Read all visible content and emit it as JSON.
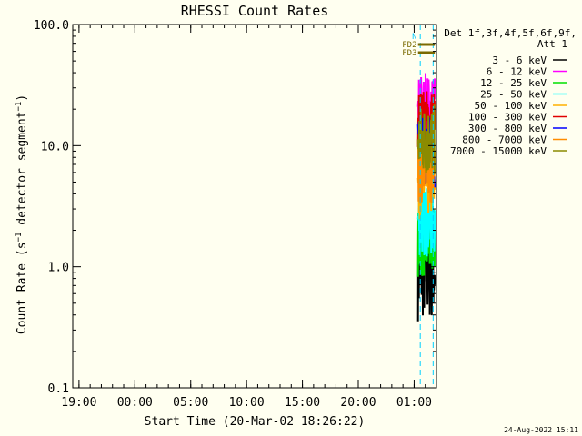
{
  "chart_data": {
    "type": "line",
    "title": "RHESSI Count Rates",
    "xlabel": "Start Time (20-Mar-02 18:26:22)",
    "ylabel_main": "Count Rate (s",
    "ylabel_sup": "−1",
    "ylabel_mid": " detector segment",
    "ylabel_sup2": "−1",
    "ylabel_end": ")",
    "y_scale": "log",
    "ylim": [
      0.1,
      100.0
    ],
    "y_ticks": [
      "0.1",
      "1.0",
      "10.0",
      "100.0"
    ],
    "x_ticks": [
      "19:00",
      "00:00",
      "05:00",
      "10:00",
      "15:00",
      "20:00",
      "01:00"
    ],
    "x_tick_hours": [
      19,
      24,
      29,
      34,
      39,
      44,
      49
    ],
    "xlim_hours": [
      18.44,
      51.0
    ],
    "data_window_hours": [
      49.35,
      50.85
    ],
    "detectors_label": "Det 1f,3f,4f,5f,6f,9f,",
    "attenuator_label": "Att 1",
    "flags": [
      {
        "label": "N",
        "color": "#00c8ff"
      },
      {
        "label": "FD2",
        "color": "#7a6a00"
      },
      {
        "label": "FD3",
        "color": "#7a6a00"
      }
    ],
    "markers_hours": [
      49.55,
      50.7
    ],
    "series": [
      {
        "name": "3 - 6 keV",
        "color": "#000000",
        "level": 1.0
      },
      {
        "name": "6 - 12 keV",
        "color": "#ff00ff",
        "level": 20.0
      },
      {
        "name": "12 - 25 keV",
        "color": "#00e000",
        "level": 1.6
      },
      {
        "name": "25 - 50 keV",
        "color": "#00ffff",
        "level": 2.4
      },
      {
        "name": "50 - 100 keV",
        "color": "#ffb000",
        "level": 5.0
      },
      {
        "name": "100 - 300 keV",
        "color": "#e00000",
        "level": 15.0
      },
      {
        "name": "300 - 800 keV",
        "color": "#0000ff",
        "level": 9.0
      },
      {
        "name": "800 - 7000 keV",
        "color": "#ff8c00",
        "level": 6.5
      },
      {
        "name": "7000 - 15000 keV",
        "color": "#8b8b00",
        "level": 11.0
      }
    ],
    "legend_placement": "top-right",
    "grid": false
  },
  "footer": {
    "timestamp": "24-Aug-2022 15:11"
  }
}
